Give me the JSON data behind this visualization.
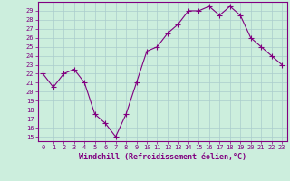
{
  "x": [
    0,
    1,
    2,
    3,
    4,
    5,
    6,
    7,
    8,
    9,
    10,
    11,
    12,
    13,
    14,
    15,
    16,
    17,
    18,
    19,
    20,
    21,
    22,
    23
  ],
  "y": [
    22,
    20.5,
    22,
    22.5,
    21,
    17.5,
    16.5,
    15,
    17.5,
    21,
    24.5,
    25,
    26.5,
    27.5,
    29,
    29,
    29.5,
    28.5,
    29.5,
    28.5,
    26,
    25,
    24,
    23
  ],
  "line_color": "#800080",
  "marker": "+",
  "marker_size": 4,
  "bg_color": "#cceedd",
  "grid_color": "#aacccc",
  "xlabel": "Windchill (Refroidissement éolien,°C)",
  "xlabel_fontsize": 6,
  "ylim_min": 14.5,
  "ylim_max": 30,
  "xlim_min": -0.5,
  "xlim_max": 23.5,
  "yticks": [
    15,
    16,
    17,
    18,
    19,
    20,
    21,
    22,
    23,
    24,
    25,
    26,
    27,
    28,
    29
  ],
  "xticks": [
    0,
    1,
    2,
    3,
    4,
    5,
    6,
    7,
    8,
    9,
    10,
    11,
    12,
    13,
    14,
    15,
    16,
    17,
    18,
    19,
    20,
    21,
    22,
    23
  ],
  "tick_color": "#800080",
  "tick_fontsize": 5,
  "spine_color": "#800080",
  "line_width": 0.8,
  "marker_color": "#800080"
}
